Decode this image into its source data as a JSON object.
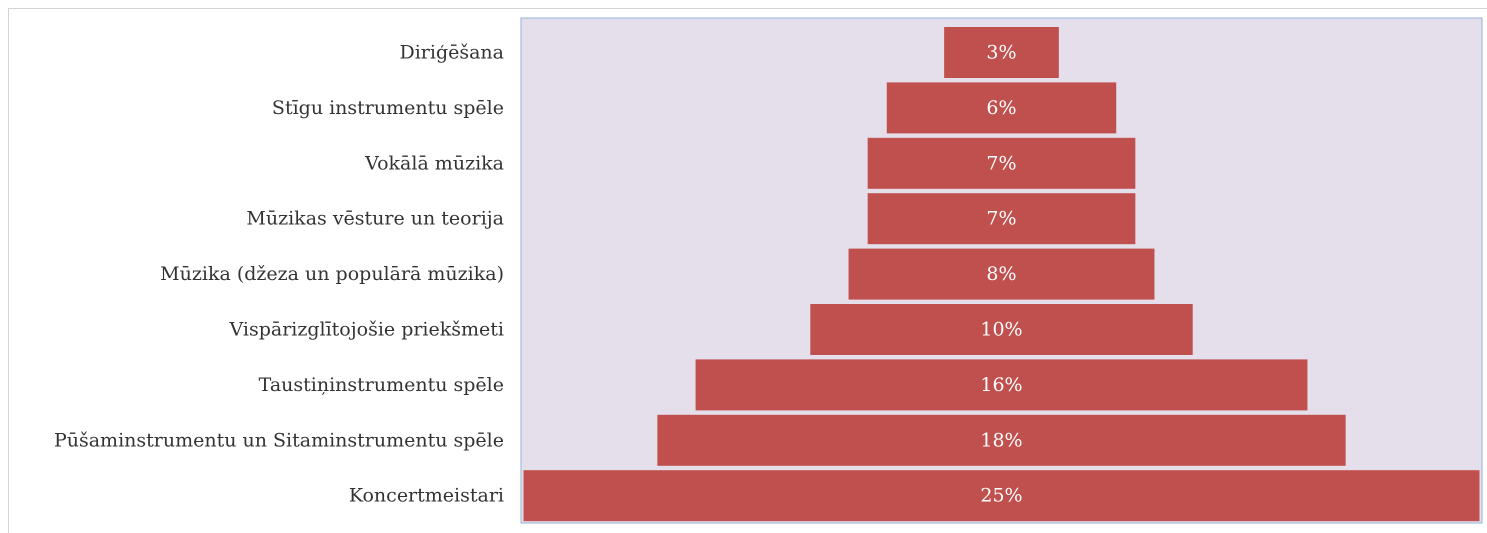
{
  "chart_data": {
    "type": "bar",
    "orientation": "horizontal",
    "layout": "centered-funnel",
    "categories": [
      "Diriģēšana",
      "Stīgu instrumentu spēle",
      "Vokālā mūzika",
      "Mūzikas vēsture un teorija",
      "Mūzika (džeza un populārā mūzika)",
      "Vispārizglītojošie priekšmeti",
      "Taustiņinstrumentu spēle",
      "Pūšaminstrumentu un Sitaminstrumentu spēle",
      "Koncertmeistari"
    ],
    "values": [
      3,
      6,
      7,
      7,
      8,
      10,
      16,
      18,
      25
    ],
    "data_labels": [
      "3%",
      "6%",
      "7%",
      "7%",
      "8%",
      "10%",
      "16%",
      "18%",
      "25%"
    ],
    "xlim": [
      0,
      25
    ],
    "unit": "%",
    "title": "",
    "xlabel": "",
    "ylabel": "",
    "grid": false,
    "legend": "none",
    "colors": {
      "bar": "#c0504d",
      "plot_background": "#e5dfec",
      "plot_border": "#95b3d7",
      "label_text": "#333333",
      "bar_label_text": "#ffffff"
    }
  }
}
